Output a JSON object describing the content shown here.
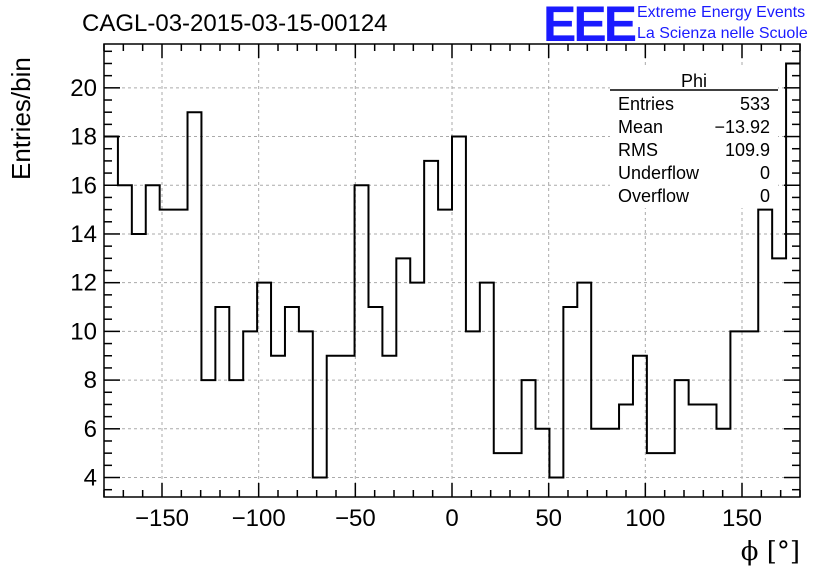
{
  "header": {
    "run_title": "CAGL-03-2015-03-15-00124",
    "logo_text": "EEE",
    "logo_line1": "Extreme Energy Events",
    "logo_line2": "La Scienza nelle Scuole",
    "logo_color": "#1a1aff"
  },
  "stats_box": {
    "title": "Phi",
    "rows": [
      {
        "label": "Entries",
        "value": "533"
      },
      {
        "label": "Mean",
        "value": "−13.92"
      },
      {
        "label": "RMS",
        "value": "109.9"
      },
      {
        "label": "Underflow",
        "value": "0"
      },
      {
        "label": "Overflow",
        "value": "0"
      }
    ]
  },
  "chart_data": {
    "type": "bar",
    "style": "step-histogram",
    "xlabel": "ϕ [°]",
    "ylabel": "Entries/bin",
    "xlim": [
      -180,
      180
    ],
    "ylim": [
      3.2,
      21.8
    ],
    "grid": true,
    "x_ticks": [
      -150,
      -100,
      -50,
      0,
      50,
      100,
      150
    ],
    "x_tick_labels": [
      "−150",
      "−100",
      "−50",
      "0",
      "50",
      "100",
      "150"
    ],
    "y_ticks": [
      4,
      6,
      8,
      10,
      12,
      14,
      16,
      18,
      20
    ],
    "y_tick_labels": [
      "4",
      "6",
      "8",
      "10",
      "12",
      "14",
      "16",
      "18",
      "20"
    ],
    "bin_edges_start": -180,
    "bin_width": 7.2,
    "values": [
      18,
      16,
      14,
      16,
      15,
      15,
      19,
      8,
      11,
      8,
      10,
      12,
      9,
      11,
      10,
      4,
      9,
      9,
      16,
      11,
      9,
      13,
      12,
      17,
      15,
      18,
      10,
      12,
      5,
      5,
      8,
      6,
      4,
      11,
      12,
      6,
      6,
      7,
      9,
      5,
      5,
      8,
      7,
      7,
      6,
      10,
      10,
      15,
      13,
      21
    ]
  }
}
